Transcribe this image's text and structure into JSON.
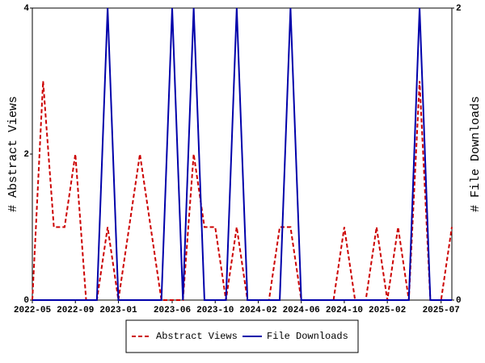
{
  "chart_data": {
    "type": "line",
    "categories": [
      "2022-05",
      null,
      null,
      null,
      "2022-09",
      null,
      null,
      null,
      "2023-01",
      null,
      null,
      null,
      null,
      "2023-06",
      null,
      null,
      null,
      "2023-10",
      null,
      null,
      null,
      "2024-02",
      null,
      null,
      null,
      "2024-06",
      null,
      null,
      null,
      "2024-10",
      null,
      null,
      null,
      "2025-02",
      null,
      null,
      null,
      null,
      "2025-07",
      null
    ],
    "series": [
      {
        "name": "Abstract Views",
        "color": "#cc0000",
        "style": "dashed",
        "values": [
          0,
          3,
          1,
          1,
          2,
          0,
          0,
          1,
          0,
          1,
          2,
          1,
          0,
          0,
          0,
          2,
          1,
          1,
          0,
          1,
          0,
          0,
          0,
          1,
          1,
          0,
          0,
          0,
          0,
          1,
          0,
          0,
          1,
          0,
          1,
          0,
          3,
          0,
          0,
          1
        ]
      },
      {
        "name": "File Downloads",
        "color": "#0000aa",
        "style": "solid",
        "axis": "y2",
        "values": [
          0,
          0,
          0,
          0,
          0,
          0,
          0,
          2,
          0,
          0,
          0,
          0,
          0,
          2,
          0,
          2,
          0,
          0,
          0,
          2,
          0,
          0,
          0,
          0,
          2,
          0,
          0,
          0,
          0,
          0,
          0,
          0,
          0,
          0,
          0,
          0,
          2,
          0,
          0,
          0
        ]
      }
    ],
    "y_label": "# Abstract Views",
    "y2_label": "# File Downloads",
    "ylim": [
      0,
      4
    ],
    "yticks": [
      0,
      2,
      4
    ],
    "y2lim": [
      0,
      2
    ],
    "y2ticks": [
      0,
      2
    ],
    "legend": "bottom"
  }
}
